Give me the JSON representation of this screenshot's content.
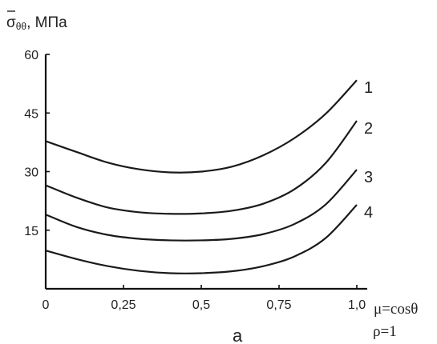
{
  "chart_data": {
    "type": "line",
    "ylabel_symbol": "σ",
    "ylabel_subscript": "θθ",
    "ylabel_unit": ", МПа",
    "xlabel": "μ=cosθ",
    "caption": "а",
    "param": "ρ=1",
    "xlim": [
      0,
      1.0
    ],
    "ylim": [
      0,
      60
    ],
    "x_ticks": [
      "0",
      "0,25",
      "0,5",
      "0,75",
      "1,0"
    ],
    "x_tick_values": [
      0,
      0.25,
      0.5,
      0.75,
      1.0
    ],
    "y_ticks": [
      "60",
      "45",
      "30",
      "15"
    ],
    "y_tick_values": [
      60,
      45,
      30,
      15
    ],
    "x": [
      0,
      0.1,
      0.2,
      0.3,
      0.4,
      0.5,
      0.6,
      0.7,
      0.8,
      0.9,
      1.0
    ],
    "series": [
      {
        "name": "1",
        "values": [
          37.8,
          35.0,
          32.3,
          30.6,
          29.8,
          30.0,
          31.3,
          34.2,
          38.6,
          44.8,
          53.4
        ]
      },
      {
        "name": "2",
        "values": [
          26.5,
          23.3,
          20.8,
          19.6,
          19.2,
          19.3,
          20.0,
          21.8,
          25.5,
          32.2,
          43.0
        ]
      },
      {
        "name": "3",
        "values": [
          19.0,
          15.8,
          13.8,
          12.8,
          12.4,
          12.4,
          12.8,
          14.0,
          16.6,
          21.6,
          30.5
        ]
      },
      {
        "name": "4",
        "values": [
          9.8,
          7.6,
          5.8,
          4.6,
          4.0,
          4.0,
          4.5,
          5.8,
          8.3,
          13.0,
          21.5
        ]
      }
    ]
  }
}
